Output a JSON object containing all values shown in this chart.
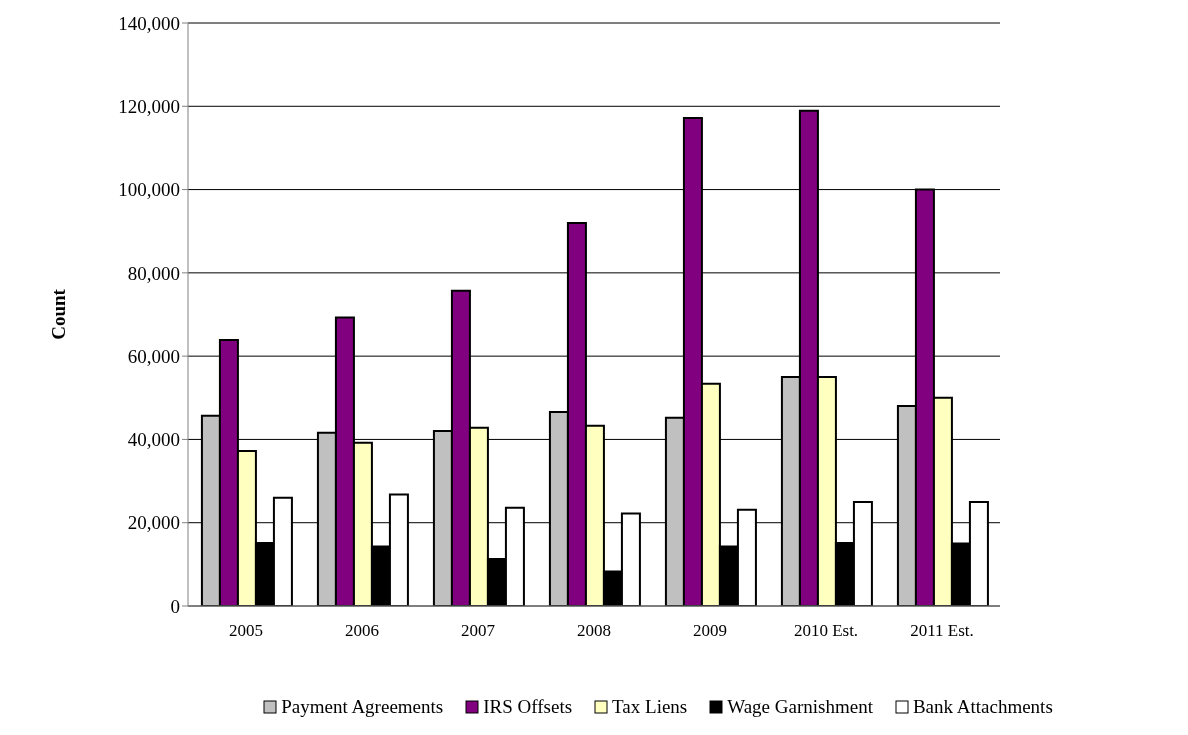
{
  "chart_data": {
    "type": "bar",
    "ylabel": "Count",
    "categories": [
      "2005",
      "2006",
      "2007",
      "2008",
      "2009",
      "2010 Est.",
      "2011 Est."
    ],
    "series": [
      {
        "name": "Payment Agreements",
        "color": "#c0c0c0",
        "values": [
          45700,
          41600,
          42000,
          46600,
          45200,
          55000,
          48000
        ]
      },
      {
        "name": "IRS Offsets",
        "color": "#800080",
        "values": [
          63900,
          69300,
          75700,
          92000,
          117200,
          118900,
          100000
        ]
      },
      {
        "name": "Tax Liens",
        "color": "#ffffc0",
        "values": [
          37200,
          39200,
          42800,
          43300,
          53400,
          55000,
          50000
        ]
      },
      {
        "name": "Wage Garnishment",
        "color": "#000000",
        "values": [
          15100,
          14300,
          11300,
          8300,
          14300,
          15100,
          15000
        ]
      },
      {
        "name": "Bank Attachments",
        "color": "#ffffff",
        "values": [
          26000,
          26800,
          23600,
          22200,
          23100,
          25000,
          25000
        ]
      }
    ],
    "ylim": [
      0,
      140000
    ],
    "yticks": [
      0,
      {
        "value": 20000,
        "label": "20,000"
      },
      {
        "value": 40000,
        "label": "40,000"
      },
      {
        "value": 60000,
        "label": "60,000"
      },
      {
        "value": 80000,
        "label": "80,000"
      },
      {
        "value": 100000,
        "label": "100,000"
      },
      {
        "value": 120000,
        "label": "120,000"
      },
      {
        "value": 140000,
        "label": "140,000"
      }
    ],
    "grid": "y",
    "legend": "bottom"
  }
}
